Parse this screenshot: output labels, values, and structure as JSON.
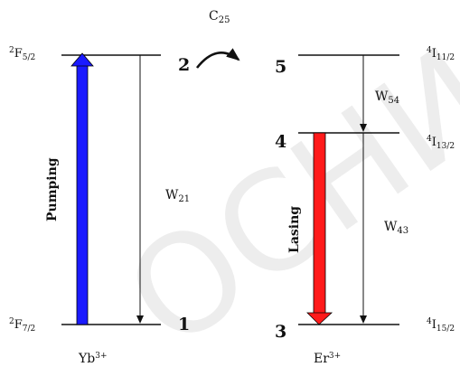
{
  "watermark": "ОСНИ ЕК",
  "transfer": {
    "label_main": "C",
    "label_sub": "25"
  },
  "yb": {
    "ion_main": "Yb",
    "ion_sup": "3+",
    "upper": {
      "number": "2",
      "term": {
        "sup": "2",
        "main": "F",
        "sub": "5/2"
      }
    },
    "lower": {
      "number": "1",
      "term": {
        "sup": "2",
        "main": "F",
        "sub": "7/2"
      }
    },
    "pump_label": "Pumping",
    "pump_color": "#1a1aff",
    "rate": {
      "main": "W",
      "sub": "21"
    }
  },
  "er": {
    "ion_main": "Er",
    "ion_sup": "3+",
    "level5": {
      "number": "5",
      "term": {
        "sup": "4",
        "main": "I",
        "sub": "11/2"
      }
    },
    "level4": {
      "number": "4",
      "term": {
        "sup": "4",
        "main": "I",
        "sub": "13/2"
      }
    },
    "level3": {
      "number": "3",
      "term": {
        "sup": "4",
        "main": "I",
        "sub": "15/2"
      }
    },
    "lasing_label": "Lasing",
    "lasing_color": "#ff1a1a",
    "rate54": {
      "main": "W",
      "sub": "54"
    },
    "rate43": {
      "main": "W",
      "sub": "43"
    }
  }
}
